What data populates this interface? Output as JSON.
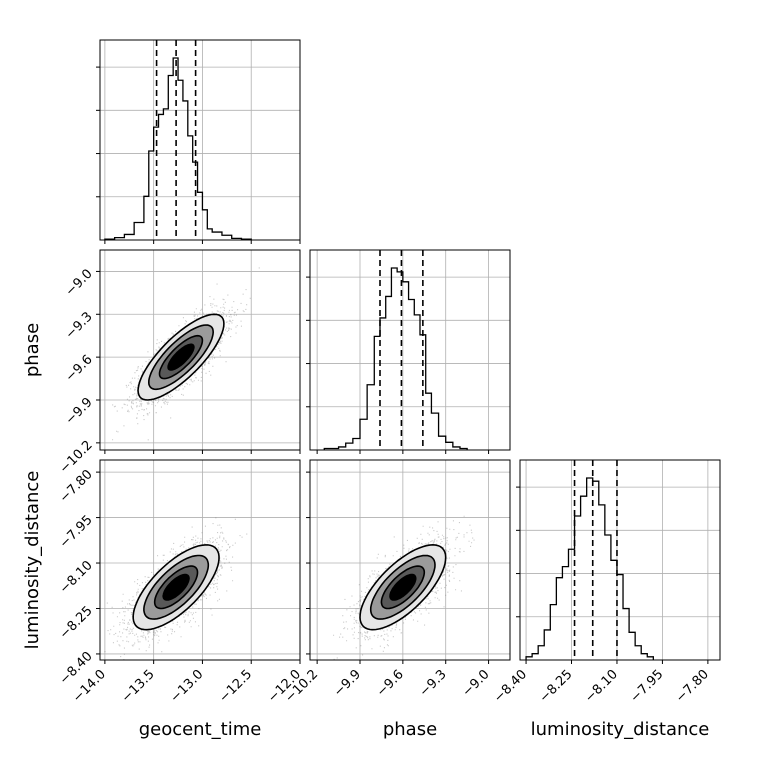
{
  "chart_data": {
    "type": "corner",
    "parameters": [
      "geocent_time",
      "phase",
      "luminosity_distance"
    ],
    "axes_ranges": {
      "geocent_time": [
        -14.05,
        -12.0
      ],
      "phase": [
        -10.25,
        -8.85
      ],
      "luminosity_distance": [
        -8.42,
        -7.76
      ]
    },
    "ticks": {
      "geocent_time": {
        "values": [
          -14.0,
          -13.5,
          -13.0,
          -12.5,
          -12.0
        ],
        "labels": [
          "−14.0",
          "−13.5",
          "−13.0",
          "−12.5",
          "−12.0"
        ]
      },
      "phase": {
        "values": [
          -10.2,
          -9.9,
          -9.6,
          -9.3,
          -9.0
        ],
        "labels": [
          "−10.2",
          "−9.9",
          "−9.6",
          "−9.3",
          "−9.0"
        ]
      },
      "luminosity_distance": {
        "values": [
          -8.4,
          -8.25,
          -8.1,
          -7.95,
          -7.8
        ],
        "labels": [
          "−8.40",
          "−8.25",
          "−8.10",
          "−7.95",
          "−7.80"
        ]
      }
    },
    "quantiles": {
      "geocent_time": [
        -13.47,
        -13.27,
        -13.07
      ],
      "phase": [
        -9.76,
        -9.61,
        -9.46
      ],
      "luminosity_distance": [
        -8.24,
        -8.18,
        -8.1
      ]
    },
    "histograms": {
      "geocent_time": {
        "bin_edges": [
          -14.0,
          -13.9,
          -13.8,
          -13.7,
          -13.6,
          -13.55,
          -13.5,
          -13.45,
          -13.4,
          -13.35,
          -13.3,
          -13.25,
          -13.2,
          -13.15,
          -13.1,
          -13.05,
          -13.0,
          -12.95,
          -12.9,
          -12.8,
          -12.7,
          -12.6,
          -12.5
        ],
        "counts": [
          1,
          3,
          7,
          22,
          55,
          112,
          142,
          158,
          165,
          207,
          229,
          201,
          175,
          131,
          98,
          60,
          38,
          14,
          10,
          6,
          2,
          1
        ]
      },
      "phase": {
        "bin_edges": [
          -10.15,
          -10.05,
          -10.0,
          -9.95,
          -9.9,
          -9.85,
          -9.8,
          -9.76,
          -9.72,
          -9.68,
          -9.64,
          -9.6,
          -9.56,
          -9.52,
          -9.48,
          -9.44,
          -9.4,
          -9.35,
          -9.3,
          -9.25,
          -9.2,
          -9.15
        ],
        "counts": [
          2,
          4,
          9,
          15,
          40,
          85,
          148,
          172,
          200,
          237,
          232,
          219,
          196,
          176,
          150,
          74,
          48,
          18,
          10,
          4,
          2
        ]
      },
      "luminosity_distance": {
        "bin_edges": [
          -8.4,
          -8.38,
          -8.36,
          -8.34,
          -8.32,
          -8.3,
          -8.28,
          -8.26,
          -8.24,
          -8.22,
          -8.2,
          -8.18,
          -8.16,
          -8.14,
          -8.12,
          -8.1,
          -8.08,
          -8.06,
          -8.04,
          -8.02,
          -8.0,
          -7.98
        ],
        "counts": [
          4,
          8,
          18,
          38,
          70,
          104,
          118,
          140,
          182,
          207,
          230,
          226,
          196,
          158,
          126,
          108,
          65,
          35,
          18,
          8,
          4
        ]
      }
    },
    "pairs": [
      {
        "x": "geocent_time",
        "y": "phase",
        "mean": [
          -13.22,
          -9.6
        ],
        "std": [
          0.22,
          0.15
        ],
        "corr": 0.78
      },
      {
        "x": "geocent_time",
        "y": "luminosity_distance",
        "mean": [
          -13.27,
          -8.18
        ],
        "std": [
          0.22,
          0.07
        ],
        "corr": 0.7
      },
      {
        "x": "phase",
        "y": "luminosity_distance",
        "mean": [
          -9.6,
          -8.18
        ],
        "std": [
          0.15,
          0.07
        ],
        "corr": 0.7
      }
    ],
    "grid": true
  }
}
